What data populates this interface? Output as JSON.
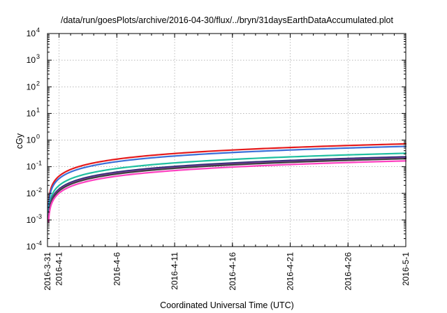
{
  "chart_data": {
    "type": "line",
    "title": "/data/run/goesPlots/archive/2016-04-30/flux/../bryn/31daysEarthDataAccumulated.plot",
    "xlabel": "Coordinated Universal Time (UTC)",
    "ylabel": "cGy",
    "y_scale": "log",
    "ylim": [
      0.0001,
      10000
    ],
    "xlim_days": [
      0,
      31
    ],
    "grid": true,
    "legend": "none",
    "y_ticks": [
      {
        "value": 0.0001,
        "base": "10",
        "exp": "-4"
      },
      {
        "value": 0.001,
        "base": "10",
        "exp": "-3"
      },
      {
        "value": 0.01,
        "base": "10",
        "exp": "-2"
      },
      {
        "value": 0.1,
        "base": "10",
        "exp": "-1"
      },
      {
        "value": 1,
        "base": "10",
        "exp": "0"
      },
      {
        "value": 10,
        "base": "10",
        "exp": "1"
      },
      {
        "value": 100,
        "base": "10",
        "exp": "2"
      },
      {
        "value": 1000,
        "base": "10",
        "exp": "3"
      },
      {
        "value": 10000,
        "base": "10",
        "exp": "4"
      }
    ],
    "x_ticks": [
      {
        "day": 0,
        "label": "2016-3-31"
      },
      {
        "day": 1,
        "label": "2016-4-1"
      },
      {
        "day": 6,
        "label": "2016-4-6"
      },
      {
        "day": 11,
        "label": "2016-4-11"
      },
      {
        "day": 16,
        "label": "2016-4-16"
      },
      {
        "day": 21,
        "label": "2016-4-21"
      },
      {
        "day": 26,
        "label": "2016-4-26"
      },
      {
        "day": 31,
        "label": "2016-5-1"
      }
    ],
    "series": [
      {
        "color": "#e41a1c",
        "end_value": 0.72
      },
      {
        "color": "#3a6fd8",
        "end_value": 0.58
      },
      {
        "color": "#20c0a0",
        "end_value": 0.32
      },
      {
        "color": "#2a2a6e",
        "end_value": 0.235
      },
      {
        "color": "#7a3fa0",
        "end_value": 0.215
      },
      {
        "color": "#404040",
        "end_value": 0.2
      },
      {
        "color": "#ff40c0",
        "end_value": 0.165
      }
    ]
  }
}
